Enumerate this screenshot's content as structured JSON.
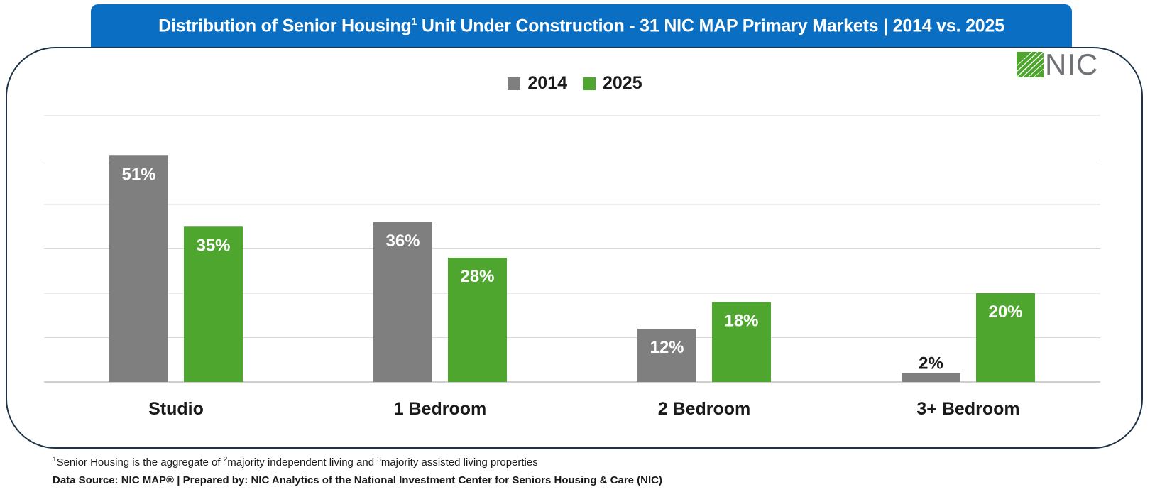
{
  "header": {
    "title_part1": "Distribution of Senior Housing",
    "title_sup": "1",
    "title_part2": " Unit Under Construction - 31 NIC MAP Primary Markets | 2014 vs. 2025",
    "bar_color": "#0a6fc2"
  },
  "logo": {
    "text": "NIC",
    "color": "#4ea62f"
  },
  "chart_data": {
    "type": "bar",
    "categories": [
      "Studio",
      "1 Bedroom",
      "2 Bedroom",
      "3+ Bedroom"
    ],
    "series": [
      {
        "name": "2014",
        "color": "#7f7f7f",
        "values": [
          51,
          36,
          12,
          2
        ],
        "labels": [
          "51%",
          "36%",
          "12%",
          "2%"
        ]
      },
      {
        "name": "2025",
        "color": "#4ea62f",
        "values": [
          35,
          28,
          18,
          20
        ],
        "labels": [
          "35%",
          "28%",
          "18%",
          "20%"
        ]
      }
    ],
    "ylim": [
      0,
      60
    ],
    "grid": true,
    "legend": "top-center"
  },
  "footer": {
    "footnote_sup1": "1",
    "footnote_text1": "Senior Housing is the aggregate of ",
    "footnote_sup2": "2",
    "footnote_text2": "majority independent living and ",
    "footnote_sup3": "3",
    "footnote_text3": "majority assisted living properties",
    "source": "Data Source: NIC MAP® | Prepared by: NIC Analytics of the National Investment Center for Seniors Housing & Care (NIC)"
  }
}
